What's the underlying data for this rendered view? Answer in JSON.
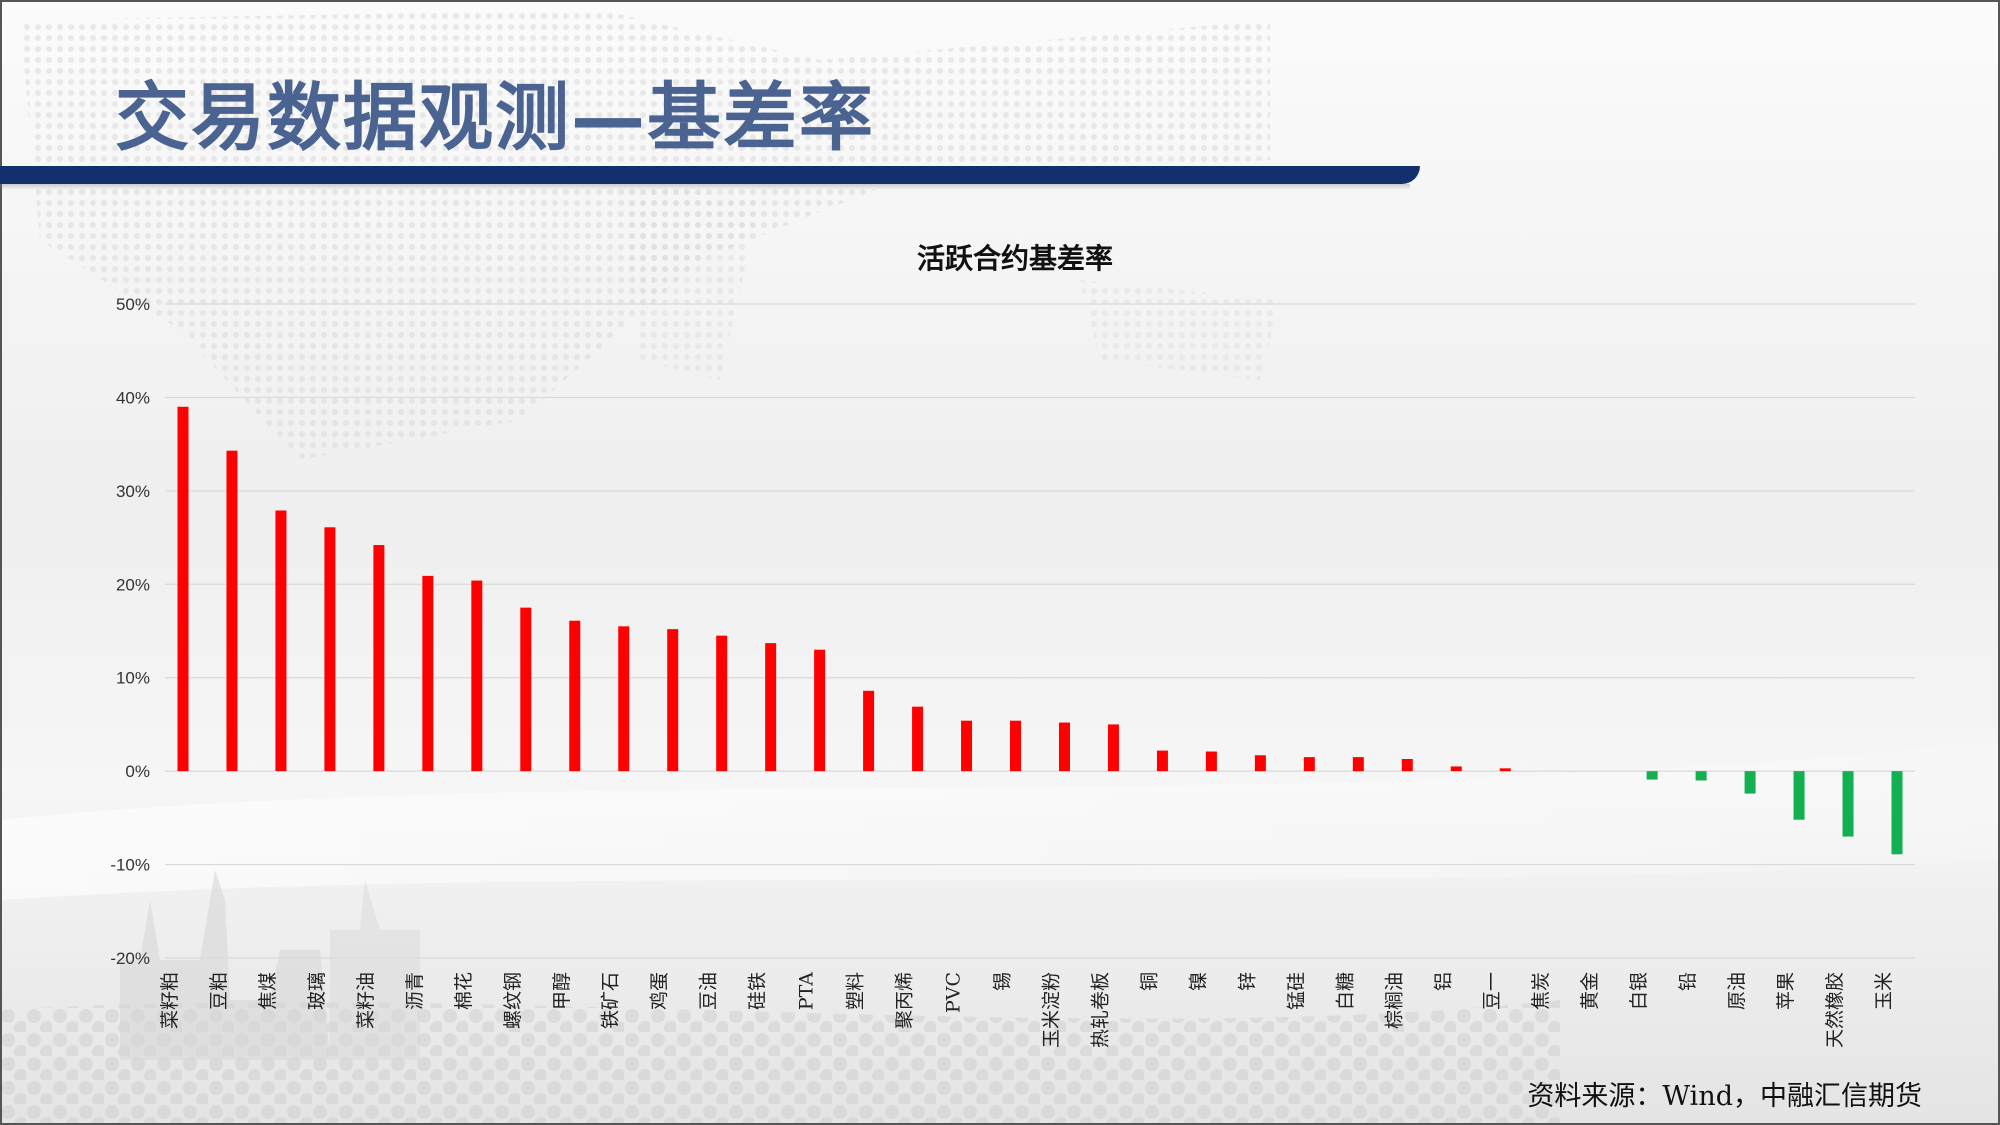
{
  "page": {
    "title": "交易数据观测—基差率",
    "source": "资料来源：Wind，中融汇信期货"
  },
  "colors": {
    "positive": "#ff0000",
    "negative": "#12b050",
    "title": "#4a6391",
    "title_bar": "#13306d",
    "grid": "#d9d9d9"
  },
  "chart_data": {
    "type": "bar",
    "title": "活跃合约基差率",
    "xlabel": "",
    "ylabel": "",
    "ylim": [
      -20,
      50
    ],
    "yticks": [
      50,
      40,
      30,
      20,
      10,
      0,
      -10,
      -20
    ],
    "ytick_labels": [
      "50%",
      "40%",
      "30%",
      "20%",
      "10%",
      "0%",
      "-10%",
      "-20%"
    ],
    "grid": true,
    "legend": "none",
    "categories": [
      "菜籽粕",
      "豆粕",
      "焦煤",
      "玻璃",
      "菜籽油",
      "沥青",
      "棉花",
      "螺纹钢",
      "甲醇",
      "铁矿石",
      "鸡蛋",
      "豆油",
      "硅铁",
      "PTA",
      "塑料",
      "聚丙烯",
      "PVC",
      "锡",
      "玉米淀粉",
      "热轧卷板",
      "铜",
      "镍",
      "锌",
      "锰硅",
      "白糖",
      "棕榈油",
      "铝",
      "豆一",
      "焦炭",
      "黄金",
      "白银",
      "铅",
      "原油",
      "苹果",
      "天然橡胶",
      "玉米"
    ],
    "values": [
      39.0,
      34.3,
      27.9,
      26.1,
      24.2,
      20.9,
      20.4,
      17.5,
      16.1,
      15.5,
      15.2,
      14.5,
      13.7,
      13.0,
      8.6,
      6.9,
      5.4,
      5.4,
      5.2,
      5.0,
      2.2,
      2.1,
      1.7,
      1.5,
      1.5,
      1.3,
      0.5,
      0.3,
      0.0,
      0.0,
      -0.9,
      -1.0,
      -2.4,
      -5.2,
      -7.0,
      -8.9
    ]
  }
}
